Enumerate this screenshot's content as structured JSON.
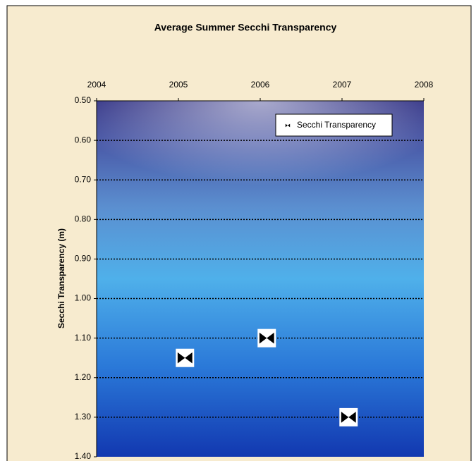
{
  "chart_data": {
    "type": "scatter",
    "title": "Average Summer Secchi Transparency",
    "y_label": "Secchi Transparency (m)",
    "series": [
      {
        "name": "Secchi Transparency",
        "color": "#000000",
        "x": [
          2005.08,
          2006.08,
          2007.08
        ],
        "values": [
          1.15,
          1.1,
          1.3
        ]
      }
    ],
    "xlim": [
      2004,
      2008
    ],
    "xticks": [
      2004,
      2005,
      2006,
      2007,
      2008
    ],
    "x_axis_position": "top",
    "ylim": [
      0.5,
      1.4
    ],
    "y_inverted": true,
    "yticks": [
      {
        "value": 0.5,
        "label": "0.50"
      },
      {
        "value": 0.6,
        "label": "0.60"
      },
      {
        "value": 0.7,
        "label": "0.70"
      },
      {
        "value": 0.8,
        "label": "0.80"
      },
      {
        "value": 0.9,
        "label": "0.90"
      },
      {
        "value": 1.0,
        "label": "1.00"
      },
      {
        "value": 1.1,
        "label": "1.10"
      },
      {
        "value": 1.2,
        "label": "1.20"
      },
      {
        "value": 1.3,
        "label": "1.30"
      },
      {
        "value": 1.4,
        "label": "1.40"
      }
    ],
    "grid": true,
    "legend": "top-right"
  }
}
